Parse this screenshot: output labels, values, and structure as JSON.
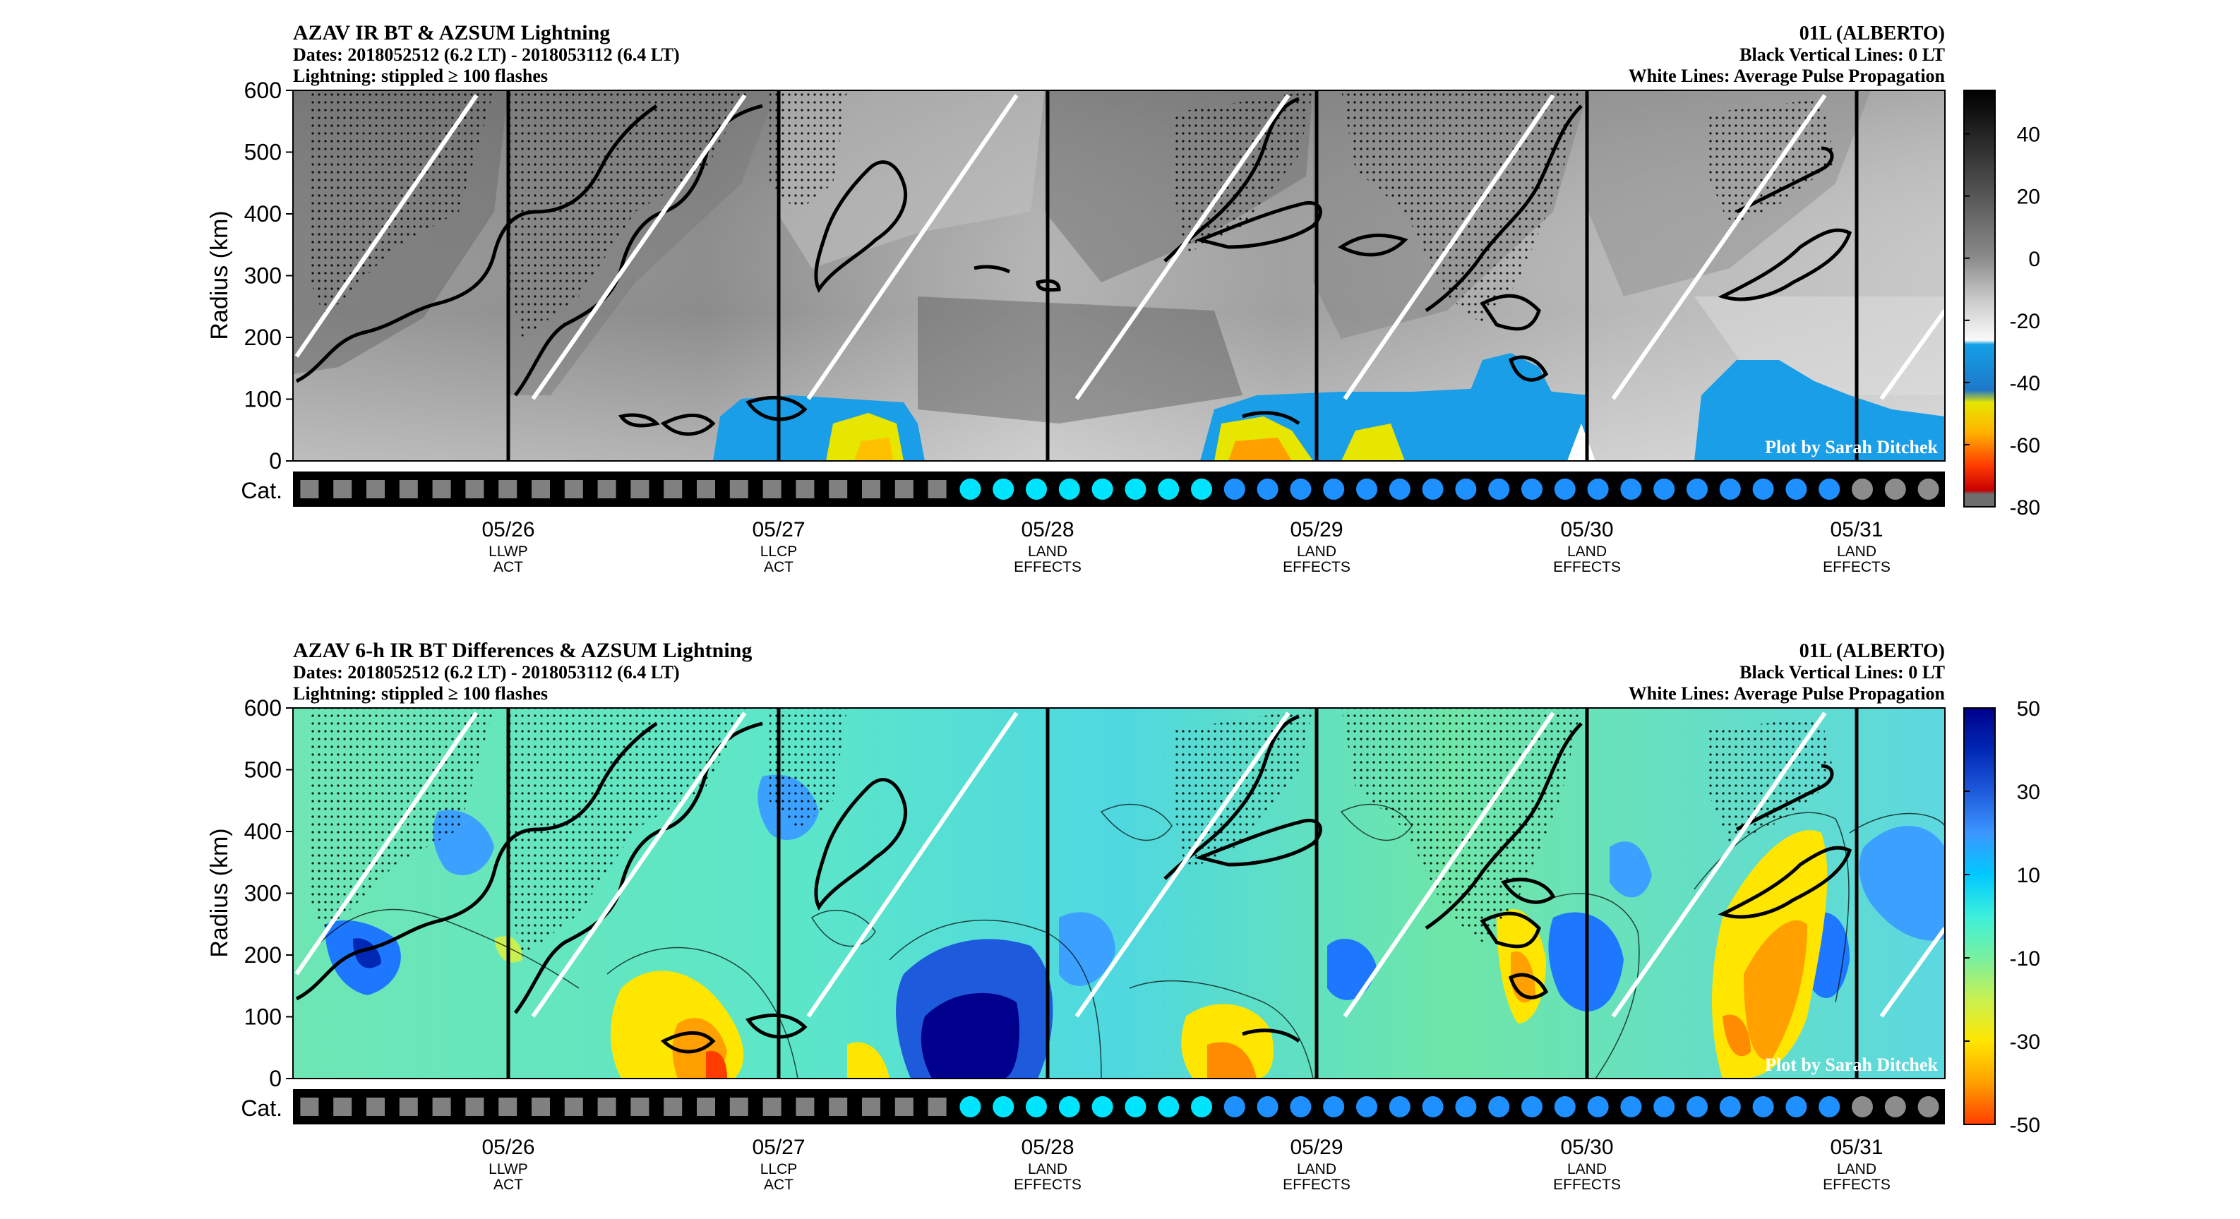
{
  "figure": {
    "panels": [
      {
        "id": "top",
        "title": "AZAV IR BT & AZSUM Lightning",
        "dates": "Dates: 2018052512 (6.2 LT) - 2018053112 (6.4 LT)",
        "lightning_note": "Lightning: stippled ≥ 100 flashes",
        "storm": "01L (ALBERTO)",
        "vline_note": "Black Vertical Lines: 0 LT",
        "whiteline_note": "White Lines: Average Pulse Propagation",
        "credit": "Plot by Sarah Ditchek",
        "cat_label": "Cat."
      },
      {
        "id": "bottom",
        "title": "AZAV 6-h IR BT Differences & AZSUM Lightning",
        "dates": "Dates: 2018052512 (6.2 LT) - 2018053112 (6.4 LT)",
        "lightning_note": "Lightning: stippled ≥ 100 flashes",
        "storm": "01L (ALBERTO)",
        "vline_note": "Black Vertical Lines: 0 LT",
        "whiteline_note": "White Lines: Average Pulse Propagation",
        "credit": "Plot by Sarah Ditchek",
        "cat_label": "Cat."
      }
    ],
    "category_colors": {
      "gray_square": "#808080",
      "cyan_circle": "#00e5ff",
      "blue_circle": "#1e90ff",
      "gray_circle": "#8c8c8c"
    }
  },
  "chart_data": [
    {
      "type": "heatmap",
      "title": "AZAV IR BT & AZSUM Lightning",
      "xlabel": "",
      "ylabel": "Radius (km)",
      "ylim": [
        0,
        600
      ],
      "yticks": [
        0,
        100,
        200,
        300,
        400,
        500,
        600
      ],
      "xticks": [
        {
          "date": "05/26",
          "event": [
            "LLWP",
            "ACT"
          ]
        },
        {
          "date": "05/27",
          "event": [
            "LLCP",
            "ACT"
          ]
        },
        {
          "date": "05/28",
          "event": [
            "LAND",
            "EFFECTS"
          ]
        },
        {
          "date": "05/29",
          "event": [
            "LAND",
            "EFFECTS"
          ]
        },
        {
          "date": "05/30",
          "event": [
            "LAND",
            "EFFECTS"
          ]
        },
        {
          "date": "05/31",
          "event": [
            "LAND",
            "EFFECTS"
          ]
        }
      ],
      "colorbar": {
        "ticks": [
          40,
          20,
          0,
          -20,
          -40,
          -60,
          -80
        ],
        "range": [
          -80,
          54
        ],
        "colors": [
          "#000000",
          "#2a2a2a",
          "#555555",
          "#808080",
          "#aaaaaa",
          "#d4d4d4",
          "#f5f5f5",
          "#00a0e6",
          "#1e78c8",
          "#e8e400",
          "#ffa000",
          "#ff3000",
          "#b40000",
          "#6e6e6e"
        ]
      },
      "categories": [
        "sq",
        "sq",
        "sq",
        "sq",
        "sq",
        "sq",
        "sq",
        "sq",
        "sq",
        "sq",
        "sq",
        "sq",
        "sq",
        "sq",
        "sq",
        "sq",
        "sq",
        "sq",
        "sq",
        "sq",
        "cy",
        "cy",
        "cy",
        "cy",
        "cy",
        "cy",
        "cy",
        "cy",
        "bl",
        "bl",
        "bl",
        "bl",
        "bl",
        "bl",
        "bl",
        "bl",
        "bl",
        "bl",
        "bl",
        "bl",
        "bl",
        "bl",
        "bl",
        "bl",
        "bl",
        "bl",
        "bl",
        "gc",
        "gc",
        "gc"
      ]
    },
    {
      "type": "heatmap",
      "title": "AZAV 6-h IR BT Differences & AZSUM Lightning",
      "xlabel": "",
      "ylabel": "Radius (km)",
      "ylim": [
        0,
        600
      ],
      "yticks": [
        0,
        100,
        200,
        300,
        400,
        500,
        600
      ],
      "xticks": [
        {
          "date": "05/26",
          "event": [
            "LLWP",
            "ACT"
          ]
        },
        {
          "date": "05/27",
          "event": [
            "LLCP",
            "ACT"
          ]
        },
        {
          "date": "05/28",
          "event": [
            "LAND",
            "EFFECTS"
          ]
        },
        {
          "date": "05/29",
          "event": [
            "LAND",
            "EFFECTS"
          ]
        },
        {
          "date": "05/30",
          "event": [
            "LAND",
            "EFFECTS"
          ]
        },
        {
          "date": "05/31",
          "event": [
            "LAND",
            "EFFECTS"
          ]
        }
      ],
      "colorbar": {
        "ticks": [
          50,
          30,
          10,
          -10,
          -30,
          -50
        ],
        "range": [
          -50,
          50
        ],
        "colors": [
          "#00008c",
          "#0032c8",
          "#1e6eff",
          "#3ca0ff",
          "#00d2ff",
          "#3cf0dc",
          "#78f0a0",
          "#b4f064",
          "#f0f000",
          "#ffc800",
          "#ff8c00",
          "#ff3c00"
        ]
      },
      "categories": [
        "sq",
        "sq",
        "sq",
        "sq",
        "sq",
        "sq",
        "sq",
        "sq",
        "sq",
        "sq",
        "sq",
        "sq",
        "sq",
        "sq",
        "sq",
        "sq",
        "sq",
        "sq",
        "sq",
        "sq",
        "cy",
        "cy",
        "cy",
        "cy",
        "cy",
        "cy",
        "cy",
        "cy",
        "bl",
        "bl",
        "bl",
        "bl",
        "bl",
        "bl",
        "bl",
        "bl",
        "bl",
        "bl",
        "bl",
        "bl",
        "bl",
        "bl",
        "bl",
        "bl",
        "bl",
        "bl",
        "bl",
        "gc",
        "gc",
        "gc"
      ]
    }
  ]
}
